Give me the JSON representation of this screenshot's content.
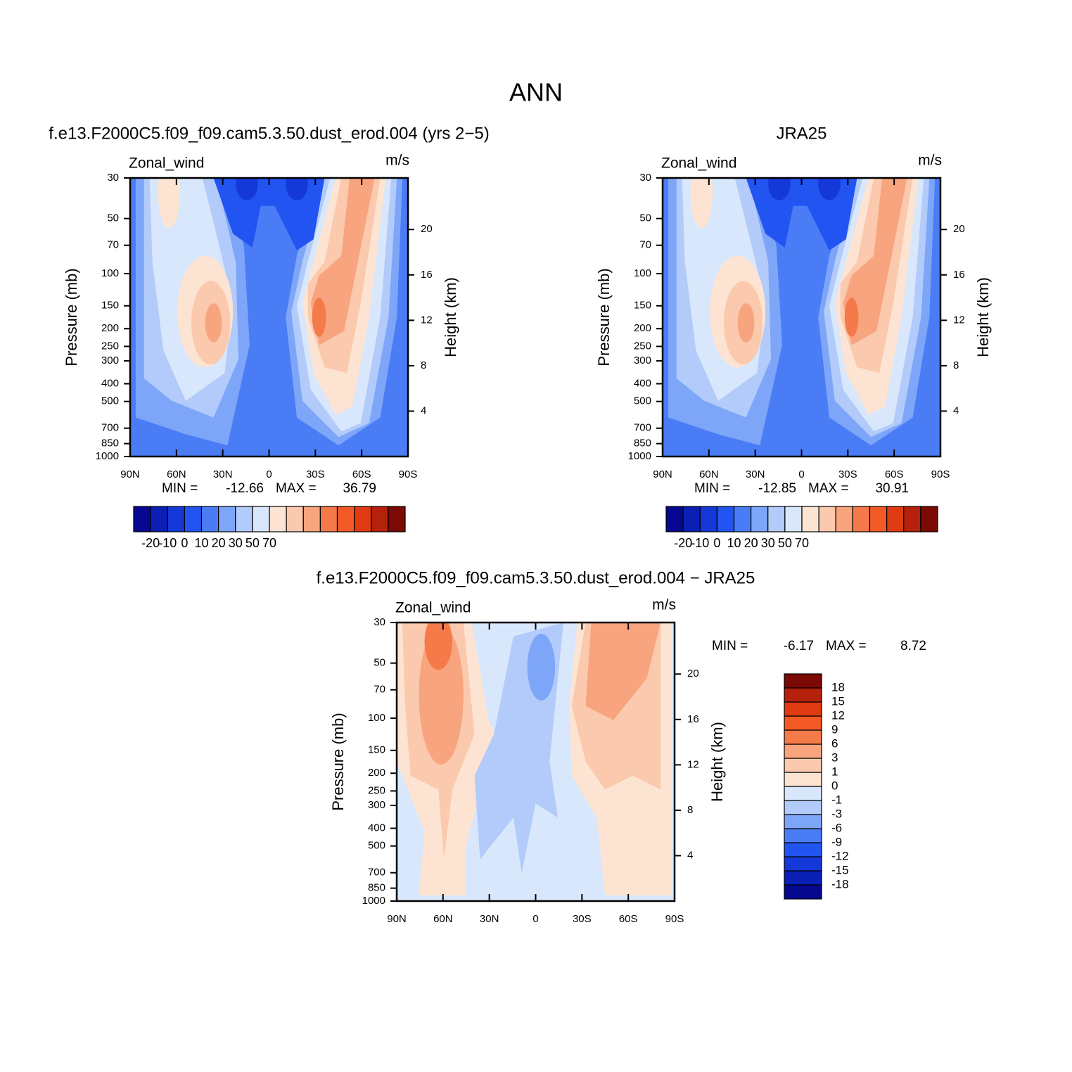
{
  "title": "ANN",
  "chart_data": [
    {
      "type": "contour",
      "title": "f.e13.F2000C5.f09_f09.cam5.3.50.dust_erod.004 (yrs 2−5)",
      "left_label": "Zonal_wind",
      "right_label": "m/s",
      "ylabel": "Pressure (mb)",
      "y2label": "Height (km)",
      "xlim": [
        90,
        -90
      ],
      "xticks": [
        {
          "value": 90,
          "label": "90N"
        },
        {
          "value": 60,
          "label": "60N"
        },
        {
          "value": 30,
          "label": "30N"
        },
        0,
        {
          "value": -30,
          "label": "30S"
        },
        {
          "value": -60,
          "label": "60S"
        },
        {
          "value": -90,
          "label": "90S"
        }
      ],
      "ylim": [
        1000,
        30
      ],
      "ylog": true,
      "yticks": [
        30,
        50,
        70,
        100,
        150,
        200,
        250,
        300,
        400,
        500,
        700,
        850,
        1000
      ],
      "y2lim": [
        0,
        24.54
      ],
      "y2ticks": [
        4,
        8,
        12,
        16,
        20
      ],
      "min_label": "MIN =",
      "min": -12.66,
      "max_label": "MAX =",
      "max": 36.79,
      "colorbar": {
        "orientation": "horizontal",
        "colors": [
          "#06088f",
          "#0a20b5",
          "#1538d8",
          "#2254f2",
          "#4a7df5",
          "#7ea6f8",
          "#b2cbfa",
          "#d8e7fb",
          "#fde4d2",
          "#fbc9ad",
          "#f7a47f",
          "#f57a4a",
          "#f35a26",
          "#e03a12",
          "#b5210a",
          "#7c0a04"
        ],
        "ticks": [
          -20,
          -10,
          0,
          10,
          20,
          30,
          50,
          70
        ]
      }
    },
    {
      "type": "contour",
      "title": "JRA25",
      "left_label": "Zonal_wind",
      "right_label": "m/s",
      "ylabel": "Pressure (mb)",
      "y2label": "Height (km)",
      "xlim": [
        90,
        -90
      ],
      "xticks": [
        {
          "value": 90,
          "label": "90N"
        },
        {
          "value": 60,
          "label": "60N"
        },
        {
          "value": 30,
          "label": "30N"
        },
        0,
        {
          "value": -30,
          "label": "30S"
        },
        {
          "value": -60,
          "label": "60S"
        },
        {
          "value": -90,
          "label": "90S"
        }
      ],
      "ylim": [
        1000,
        30
      ],
      "ylog": true,
      "yticks": [
        30,
        50,
        70,
        100,
        150,
        200,
        250,
        300,
        400,
        500,
        700,
        850,
        1000
      ],
      "y2lim": [
        0,
        24.54
      ],
      "y2ticks": [
        4,
        8,
        12,
        16,
        20
      ],
      "min_label": "MIN =",
      "min": -12.85,
      "max_label": "MAX =",
      "max": 30.91,
      "colorbar": {
        "orientation": "horizontal",
        "colors": [
          "#06088f",
          "#0a20b5",
          "#1538d8",
          "#2254f2",
          "#4a7df5",
          "#7ea6f8",
          "#b2cbfa",
          "#d8e7fb",
          "#fde4d2",
          "#fbc9ad",
          "#f7a47f",
          "#f57a4a",
          "#f35a26",
          "#e03a12",
          "#b5210a",
          "#7c0a04"
        ],
        "ticks": [
          -20,
          -10,
          0,
          10,
          20,
          30,
          50,
          70
        ]
      }
    },
    {
      "type": "contour",
      "title": "f.e13.F2000C5.f09_f09.cam5.3.50.dust_erod.004 − JRA25",
      "left_label": "Zonal_wind",
      "right_label": "m/s",
      "ylabel": "Pressure (mb)",
      "y2label": "Height (km)",
      "xlim": [
        90,
        -90
      ],
      "xticks": [
        {
          "value": 90,
          "label": "90N"
        },
        {
          "value": 60,
          "label": "60N"
        },
        {
          "value": 30,
          "label": "30N"
        },
        0,
        {
          "value": -30,
          "label": "30S"
        },
        {
          "value": -60,
          "label": "60S"
        },
        {
          "value": -90,
          "label": "90S"
        }
      ],
      "ylim": [
        1000,
        30
      ],
      "ylog": true,
      "yticks": [
        30,
        50,
        70,
        100,
        150,
        200,
        250,
        300,
        400,
        500,
        700,
        850,
        1000
      ],
      "y2lim": [
        0,
        24.54
      ],
      "y2ticks": [
        4,
        8,
        12,
        16,
        20
      ],
      "min_label": "MIN =",
      "min": -6.17,
      "max_label": "MAX =",
      "max": 8.72,
      "colorbar": {
        "orientation": "vertical",
        "colors": [
          "#06088f",
          "#0a20b5",
          "#1538d8",
          "#2254f2",
          "#4a7df5",
          "#7ea6f8",
          "#b2cbfa",
          "#d8e7fb",
          "#fde4d2",
          "#fbc9ad",
          "#f7a47f",
          "#f57a4a",
          "#f35a26",
          "#e03a12",
          "#b5210a",
          "#7c0a04"
        ],
        "ticks": [
          -18,
          -15,
          -12,
          -9,
          -6,
          -3,
          -1,
          0,
          1,
          3,
          6,
          9,
          12,
          15,
          18
        ]
      }
    }
  ]
}
